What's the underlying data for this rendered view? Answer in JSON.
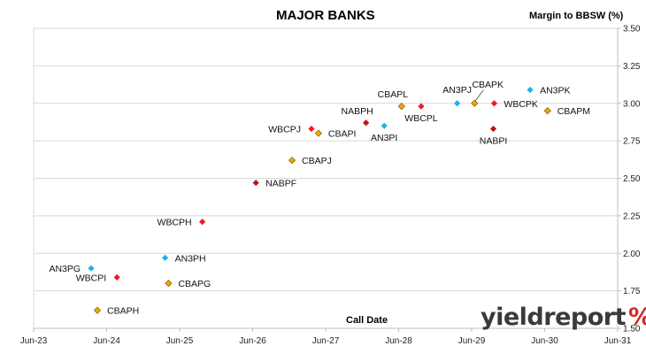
{
  "header": {
    "title": "MAJOR BANKS",
    "ylabel": "Margin to BBSW (%)",
    "xlabel": "Call Date"
  },
  "logo": {
    "text": "yieldreport",
    "symbol": "%"
  },
  "colors": {
    "ANZ": "#1ab4e8",
    "WBC": "#ee1c24",
    "CBA": "#f2a800",
    "NAB": "#b5141b",
    "grid": "#d9d9d9",
    "axis": "#bfbfbf"
  },
  "chart_data": {
    "type": "scatter",
    "title": "MAJOR BANKS",
    "xlabel": "Call Date",
    "ylabel": "Margin to BBSW (%)",
    "xlim": [
      "2023-06-01",
      "2031-06-01"
    ],
    "ylim": [
      1.5,
      3.5
    ],
    "x_ticks": [
      "Jun-23",
      "Jun-24",
      "Jun-25",
      "Jun-26",
      "Jun-27",
      "Jun-28",
      "Jun-29",
      "Jun-30",
      "Jun-31"
    ],
    "y_ticks": [
      "1.50",
      "1.75",
      "2.00",
      "2.25",
      "2.50",
      "2.75",
      "3.00",
      "3.25",
      "3.50"
    ],
    "grid": {
      "horizontal": true,
      "vertical": false
    },
    "points": [
      {
        "label": "AN3PG",
        "issuer": "ANZ",
        "x": "2024-03-15",
        "y": 1.9,
        "label_pos": "left"
      },
      {
        "label": "WBCPI",
        "issuer": "WBC",
        "x": "2024-07-22",
        "y": 1.84,
        "label_pos": "left"
      },
      {
        "label": "CBAPH",
        "issuer": "CBA",
        "x": "2024-04-15",
        "y": 1.62,
        "label_pos": "right"
      },
      {
        "label": "AN3PH",
        "issuer": "ANZ",
        "x": "2025-03-20",
        "y": 1.97,
        "label_pos": "right"
      },
      {
        "label": "CBAPG",
        "issuer": "CBA",
        "x": "2025-04-06",
        "y": 1.8,
        "label_pos": "right"
      },
      {
        "label": "WBCPH",
        "issuer": "WBC",
        "x": "2025-09-22",
        "y": 2.21,
        "label_pos": "left"
      },
      {
        "label": "NABPF",
        "issuer": "NAB",
        "x": "2026-06-17",
        "y": 2.47,
        "label_pos": "right"
      },
      {
        "label": "CBAPJ",
        "issuer": "CBA",
        "x": "2026-12-15",
        "y": 2.62,
        "label_pos": "right"
      },
      {
        "label": "WBCPJ",
        "issuer": "WBC",
        "x": "2027-03-22",
        "y": 2.83,
        "label_pos": "left"
      },
      {
        "label": "CBAPI",
        "issuer": "CBA",
        "x": "2027-04-26",
        "y": 2.8,
        "label_pos": "right"
      },
      {
        "label": "NABPH",
        "issuer": "NAB",
        "x": "2027-12-20",
        "y": 2.87,
        "label_pos": "above-left"
      },
      {
        "label": "AN3PI",
        "issuer": "ANZ",
        "x": "2028-03-20",
        "y": 2.85,
        "label_pos": "below"
      },
      {
        "label": "CBAPL",
        "issuer": "CBA",
        "x": "2028-06-15",
        "y": 2.98,
        "label_pos": "above-left"
      },
      {
        "label": "WBCPL",
        "issuer": "WBC",
        "x": "2028-09-21",
        "y": 2.98,
        "label_pos": "below"
      },
      {
        "label": "AN3PJ",
        "issuer": "ANZ",
        "x": "2029-03-20",
        "y": 3.0,
        "label_pos": "above"
      },
      {
        "label": "CBAPK",
        "issuer": "CBA",
        "x": "2029-06-15",
        "y": 3.0,
        "label_pos": "leader-above"
      },
      {
        "label": "WBCPK",
        "issuer": "WBC",
        "x": "2029-09-21",
        "y": 3.0,
        "label_pos": "right"
      },
      {
        "label": "NABPI",
        "issuer": "NAB",
        "x": "2029-09-17",
        "y": 2.83,
        "label_pos": "below"
      },
      {
        "label": "AN3PK",
        "issuer": "ANZ",
        "x": "2030-03-20",
        "y": 3.09,
        "label_pos": "right"
      },
      {
        "label": "CBAPM",
        "issuer": "CBA",
        "x": "2030-06-15",
        "y": 2.95,
        "label_pos": "right"
      }
    ]
  }
}
